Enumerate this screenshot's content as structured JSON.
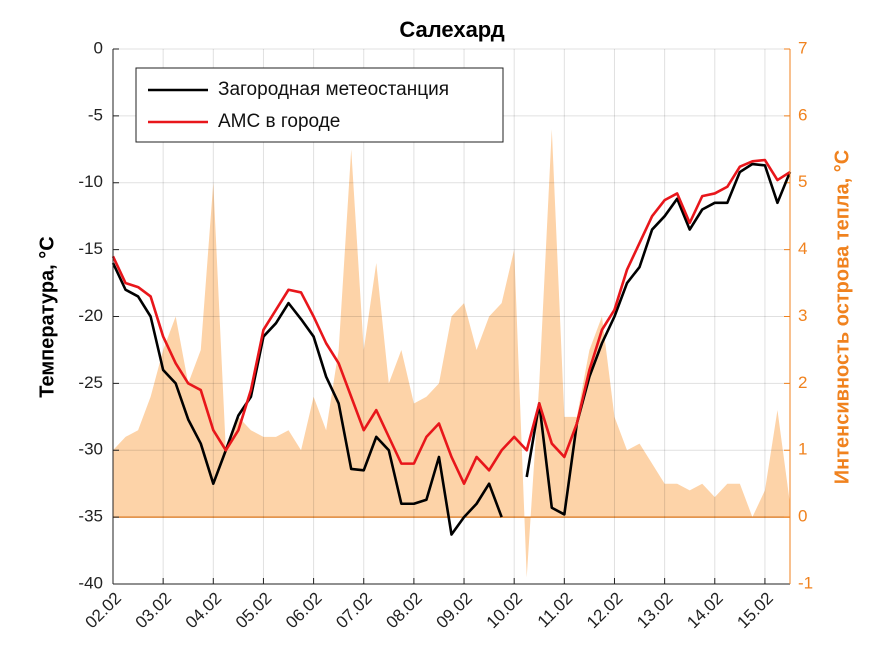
{
  "chart_data": {
    "type": "line",
    "title": "Салехард",
    "ylabel": "Температура, °С",
    "y2label": "Интенсивность острова тепла, °С",
    "x": [
      0,
      0.25,
      0.5,
      0.75,
      1,
      1.25,
      1.5,
      1.75,
      2,
      2.25,
      2.5,
      2.75,
      3,
      3.25,
      3.5,
      3.75,
      4,
      4.25,
      4.5,
      4.75,
      5,
      5.25,
      5.5,
      5.75,
      6,
      6.25,
      6.5,
      6.75,
      7,
      7.25,
      7.5,
      7.75,
      8,
      8.25,
      8.5,
      8.75,
      9,
      9.25,
      9.5,
      9.75,
      10,
      10.25,
      10.5,
      10.75,
      11,
      11.25,
      11.5,
      11.75,
      12,
      12.25,
      12.5,
      12.75,
      13,
      13.25,
      13.5
    ],
    "xlim": [
      0,
      13.5
    ],
    "xticks": [
      {
        "value": 0,
        "label": "02.02"
      },
      {
        "value": 1,
        "label": "03.02"
      },
      {
        "value": 2,
        "label": "04.02"
      },
      {
        "value": 3,
        "label": "05.02"
      },
      {
        "value": 4,
        "label": "06.02"
      },
      {
        "value": 5,
        "label": "07.02"
      },
      {
        "value": 6,
        "label": "08.02"
      },
      {
        "value": 7,
        "label": "09.02"
      },
      {
        "value": 8,
        "label": "10.02"
      },
      {
        "value": 9,
        "label": "11.02"
      },
      {
        "value": 10,
        "label": "12.02"
      },
      {
        "value": 11,
        "label": "13.02"
      },
      {
        "value": 12,
        "label": "14.02"
      },
      {
        "value": 13,
        "label": "15.02"
      }
    ],
    "ylim": [
      -40,
      0
    ],
    "yticks": [
      -40,
      -35,
      -30,
      -25,
      -20,
      -15,
      -10,
      -5,
      0
    ],
    "y2lim": [
      -1,
      7
    ],
    "y2ticks": [
      -1,
      0,
      1,
      2,
      3,
      4,
      5,
      6,
      7
    ],
    "grid": true,
    "legend": "upper left",
    "series": [
      {
        "name": "Загородная метеостанция",
        "color": "#000000",
        "type": "line",
        "values": [
          -16,
          -18,
          -18.5,
          -20,
          -24,
          -25,
          -27.7,
          -29.5,
          -32.5,
          -30,
          -27.4,
          -26,
          -21.5,
          -20.5,
          -19,
          -20.2,
          -21.5,
          -24.5,
          -26.5,
          -31.4,
          -31.5,
          -29,
          -30,
          -34,
          -34,
          -33.7,
          -30.5,
          -36.3,
          -35,
          -34,
          -32.5,
          -35,
          null,
          -32,
          -26.5,
          -34.3,
          -34.8,
          -28,
          -24.5,
          -22,
          -20,
          -17.5,
          -16.3,
          -13.5,
          -12.5,
          -11.2,
          -13.5,
          -12,
          -11.5,
          -11.5,
          -9.2,
          -8.6,
          -8.7,
          -11.5,
          -9.2
        ]
      },
      {
        "name": "АМС в городе",
        "color": "#e8161b",
        "type": "line",
        "values": [
          -15.5,
          -17.5,
          -17.8,
          -18.5,
          -21.5,
          -23.5,
          -25,
          -25.5,
          -28.5,
          -30,
          -28.5,
          -25.5,
          -21,
          -19.5,
          -18,
          -18.2,
          -20,
          -22,
          -23.5,
          -26,
          -28.5,
          -27,
          -29,
          -31,
          -31,
          -29,
          -28,
          -30.5,
          -32.5,
          -30.5,
          -31.5,
          -30,
          -29,
          -30,
          -26.5,
          -29.5,
          -30.5,
          -28,
          -24,
          -21,
          -19.5,
          -16.5,
          -14.5,
          -12.5,
          -11.3,
          -10.8,
          -13,
          -11,
          -10.8,
          -10.3,
          -8.8,
          -8.4,
          -8.3,
          -9.8,
          -9.2
        ]
      },
      {
        "color": "#fdd3a8",
        "type": "area",
        "axis": "y2",
        "values": [
          1,
          1.2,
          1.3,
          1.8,
          2.5,
          3,
          2,
          2.5,
          5,
          1,
          1.5,
          1.3,
          1.2,
          1.2,
          1.3,
          1,
          1.8,
          1.3,
          2.5,
          5.5,
          2.5,
          3.8,
          2,
          2.5,
          1.7,
          1.8,
          2,
          3,
          3.2,
          2.5,
          3,
          3.2,
          4,
          -0.9,
          2,
          5.8,
          1.5,
          1.5,
          2.5,
          3,
          1.5,
          1,
          1.1,
          0.8,
          0.5,
          0.5,
          0.4,
          0.5,
          0.3,
          0.5,
          0.5,
          0,
          0.4,
          1.6,
          0.2
        ]
      }
    ]
  }
}
